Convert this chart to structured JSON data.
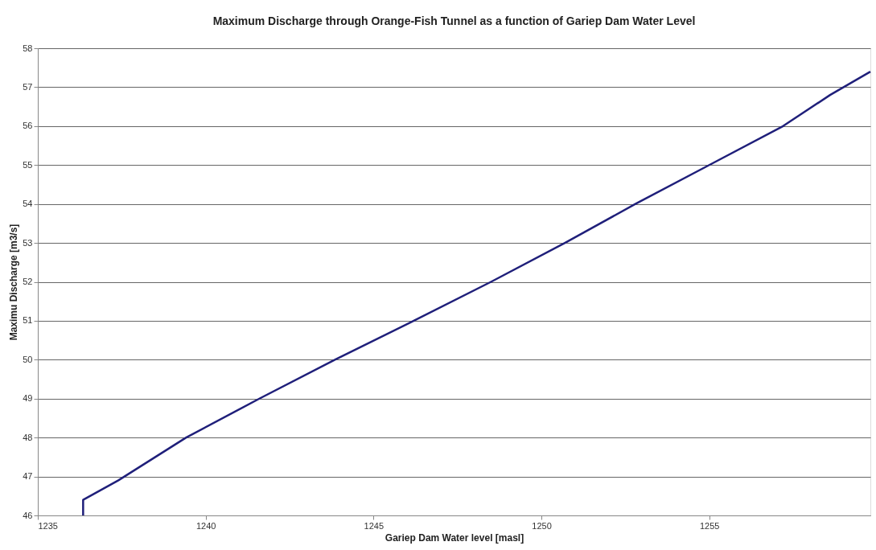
{
  "chart_data": {
    "type": "line",
    "title": "Maximum Discharge through Orange-Fish Tunnel as a function of Gariep Dam Water Level",
    "xlabel": "Gariep Dam Water level [masl]",
    "ylabel": "Maximu Discharge [m3/s]",
    "series": [
      {
        "color": "#1f1f7a",
        "x": [
          1236.35,
          1236.35,
          1237.4,
          1239.42,
          1241.6,
          1243.85,
          1246.2,
          1248.5,
          1250.7,
          1252.8,
          1255.0,
          1257.2,
          1258.6,
          1259.8
        ],
        "values": [
          46.0,
          46.4,
          46.9,
          48.0,
          49.0,
          50.0,
          51.0,
          52.0,
          53.0,
          54.0,
          55.0,
          56.0,
          56.8,
          57.4
        ]
      }
    ],
    "xlim": [
      1235,
      1259.8
    ],
    "xticks": [
      1235,
      1240,
      1245,
      1250,
      1255
    ],
    "ylim": [
      46,
      58
    ],
    "yticks": [
      46,
      47,
      48,
      49,
      50,
      51,
      52,
      53,
      54,
      55,
      56,
      57,
      58
    ],
    "grid": "y",
    "marker": "none",
    "line_style": "solid"
  }
}
